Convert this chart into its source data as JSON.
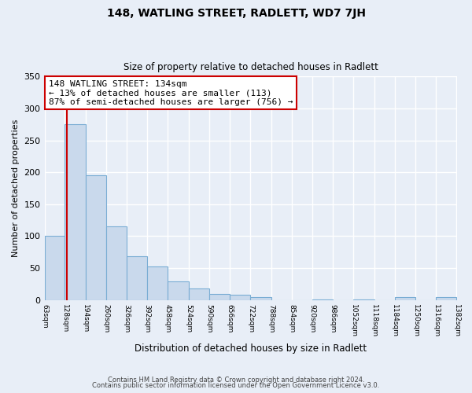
{
  "title": "148, WATLING STREET, RADLETT, WD7 7JH",
  "subtitle": "Size of property relative to detached houses in Radlett",
  "xlabel": "Distribution of detached houses by size in Radlett",
  "ylabel": "Number of detached properties",
  "bin_edges": [
    63,
    128,
    194,
    260,
    326,
    392,
    458,
    524,
    590,
    656,
    722,
    788,
    854,
    920,
    986,
    1052,
    1118,
    1184,
    1250,
    1316,
    1382
  ],
  "bar_heights": [
    100,
    275,
    195,
    115,
    68,
    53,
    29,
    18,
    10,
    8,
    5,
    0,
    0,
    1,
    0,
    1,
    0,
    5,
    0,
    5
  ],
  "bar_color": "#c9d9ec",
  "bar_edge_color": "#7aadd4",
  "property_size": 134,
  "vline_color": "#cc0000",
  "annotation_line1": "148 WATLING STREET: 134sqm",
  "annotation_line2": "← 13% of detached houses are smaller (113)",
  "annotation_line3": "87% of semi-detached houses are larger (756) →",
  "annotation_box_color": "#ffffff",
  "annotation_box_edge": "#cc0000",
  "ylim": [
    0,
    350
  ],
  "yticks": [
    0,
    50,
    100,
    150,
    200,
    250,
    300,
    350
  ],
  "footer1": "Contains HM Land Registry data © Crown copyright and database right 2024.",
  "footer2": "Contains public sector information licensed under the Open Government Licence v3.0.",
  "background_color": "#e8eef7",
  "grid_color": "#ffffff"
}
